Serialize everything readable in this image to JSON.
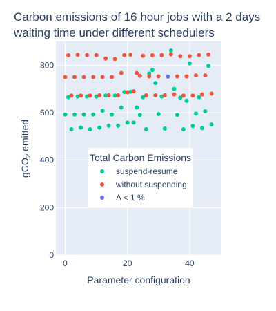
{
  "chart_data": {
    "type": "scatter",
    "title_lines": [
      "Carbon emissions of 16 hour jobs with a 2 days",
      "waiting time under different schedulers"
    ],
    "xlabel": "Parameter configuration",
    "ylabel_main": "gCO",
    "ylabel_sub": "2",
    "ylabel_tail": " emitted",
    "xlim": [
      -3,
      50
    ],
    "ylim": [
      0,
      900
    ],
    "xticks": [
      0,
      20,
      40
    ],
    "yticks": [
      0,
      200,
      400,
      600,
      800
    ],
    "grid": true,
    "background": "#e5ecf6",
    "legend": {
      "title": "Total Carbon Emissions",
      "placement": "center-right"
    },
    "series": [
      {
        "name": "suspend-resume",
        "color": "#00cc96",
        "points": [
          [
            0,
            592
          ],
          [
            1,
            665
          ],
          [
            2,
            530
          ],
          [
            3,
            592
          ],
          [
            4,
            668
          ],
          [
            5,
            537
          ],
          [
            6,
            592
          ],
          [
            7,
            668
          ],
          [
            8,
            530
          ],
          [
            9,
            592
          ],
          [
            10,
            668
          ],
          [
            11,
            537
          ],
          [
            12,
            608
          ],
          [
            13,
            672
          ],
          [
            14,
            545
          ],
          [
            15,
            592
          ],
          [
            16,
            672
          ],
          [
            17,
            545
          ],
          [
            18,
            622
          ],
          [
            19,
            687
          ],
          [
            20,
            558
          ],
          [
            21,
            688
          ],
          [
            22,
            558
          ],
          [
            23,
            622
          ],
          [
            24,
            590
          ],
          [
            25,
            665
          ],
          [
            26,
            530
          ],
          [
            27,
            765
          ],
          [
            28,
            780
          ],
          [
            29,
            725
          ],
          [
            30,
            594
          ],
          [
            31,
            668
          ],
          [
            32,
            533
          ],
          [
            33,
            752
          ],
          [
            34,
            862
          ],
          [
            35,
            700
          ],
          [
            36,
            590
          ],
          [
            37,
            663
          ],
          [
            38,
            530
          ],
          [
            39,
            650
          ],
          [
            40,
            808
          ],
          [
            41,
            544
          ],
          [
            42,
            596
          ],
          [
            43,
            665
          ],
          [
            44,
            535
          ],
          [
            45,
            606
          ],
          [
            46,
            797
          ],
          [
            47,
            550
          ]
        ]
      },
      {
        "name": "without suspending",
        "color": "#ef553b",
        "points": [
          [
            0,
            750
          ],
          [
            1,
            842
          ],
          [
            2,
            672
          ],
          [
            3,
            750
          ],
          [
            4,
            844
          ],
          [
            5,
            672
          ],
          [
            6,
            750
          ],
          [
            7,
            843
          ],
          [
            8,
            672
          ],
          [
            9,
            750
          ],
          [
            10,
            843
          ],
          [
            11,
            673
          ],
          [
            12,
            750
          ],
          [
            13,
            828
          ],
          [
            14,
            673
          ],
          [
            15,
            750
          ],
          [
            16,
            826
          ],
          [
            17,
            673
          ],
          [
            18,
            767
          ],
          [
            19,
            843
          ],
          [
            20,
            686
          ],
          [
            21,
            844
          ],
          [
            22,
            690
          ],
          [
            23,
            767
          ],
          [
            24,
            755
          ],
          [
            25,
            840
          ],
          [
            26,
            673
          ],
          [
            27,
            753
          ],
          [
            28,
            842
          ],
          [
            29,
            673
          ],
          [
            30,
            753
          ],
          [
            31,
            843
          ],
          [
            32,
            673
          ],
          [
            34,
            846
          ],
          [
            35,
            677
          ],
          [
            36,
            753
          ],
          [
            37,
            838
          ],
          [
            38,
            672
          ],
          [
            39,
            753
          ],
          [
            40,
            838
          ],
          [
            41,
            672
          ],
          [
            42,
            757
          ],
          [
            43,
            843
          ],
          [
            44,
            677
          ],
          [
            45,
            757
          ],
          [
            46,
            845
          ],
          [
            47,
            680
          ]
        ]
      },
      {
        "name": "Δ < 1 %",
        "color": "#636efa",
        "points": [
          [
            33,
            752
          ]
        ]
      }
    ]
  }
}
